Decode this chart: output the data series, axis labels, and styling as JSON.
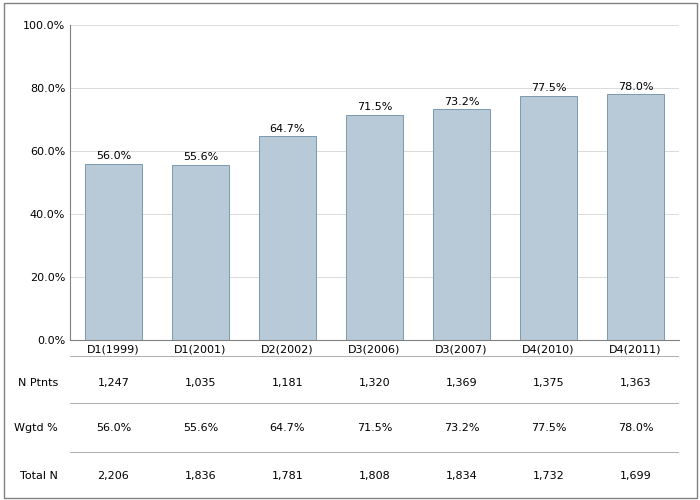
{
  "categories": [
    "D1(1999)",
    "D1(2001)",
    "D2(2002)",
    "D3(2006)",
    "D3(2007)",
    "D4(2010)",
    "D4(2011)"
  ],
  "values": [
    56.0,
    55.6,
    64.7,
    71.5,
    73.2,
    77.5,
    78.0
  ],
  "bar_color": "#b8cad8",
  "bar_edge_color": "#7a9ab0",
  "bar_labels": [
    "56.0%",
    "55.6%",
    "64.7%",
    "71.5%",
    "73.2%",
    "77.5%",
    "78.0%"
  ],
  "ylim": [
    0,
    100
  ],
  "yticks": [
    0,
    20,
    40,
    60,
    80,
    100
  ],
  "ytick_labels": [
    "0.0%",
    "20.0%",
    "40.0%",
    "60.0%",
    "80.0%",
    "100.0%"
  ],
  "table_rows": {
    "N Ptnts": [
      "1,247",
      "1,035",
      "1,181",
      "1,320",
      "1,369",
      "1,375",
      "1,363"
    ],
    "Wgtd %": [
      "56.0%",
      "55.6%",
      "64.7%",
      "71.5%",
      "73.2%",
      "77.5%",
      "78.0%"
    ],
    "Total N": [
      "2,206",
      "1,836",
      "1,781",
      "1,808",
      "1,834",
      "1,732",
      "1,699"
    ]
  },
  "background_color": "#ffffff",
  "grid_color": "#cccccc",
  "font_size_ticks": 8,
  "font_size_labels": 8,
  "font_size_table": 8
}
